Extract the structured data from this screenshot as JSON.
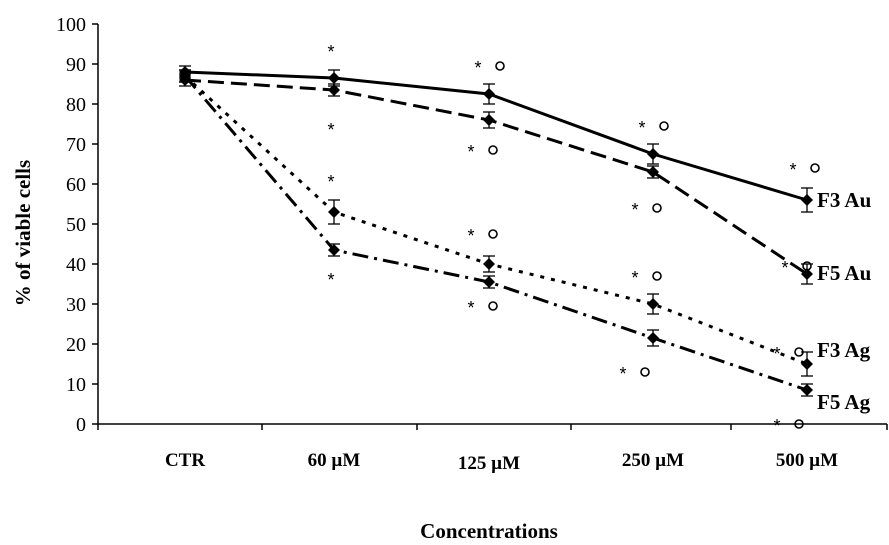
{
  "chart_data": {
    "type": "line",
    "title": "",
    "xlabel": "Concentrations",
    "ylabel": "% of viable cells",
    "categories": [
      "CTR",
      "60 µM",
      "125 µM",
      "250 µM",
      "500 µM"
    ],
    "ylim": [
      0,
      100
    ],
    "yticks": [
      0,
      10,
      20,
      30,
      40,
      50,
      60,
      70,
      80,
      90,
      100
    ],
    "grid": false,
    "series": [
      {
        "name": "F3 Au",
        "line_style": "solid",
        "values": [
          88,
          86.5,
          82.5,
          67.5,
          56
        ],
        "errors": [
          1.5,
          2,
          2.5,
          2.5,
          3
        ],
        "annotations": [
          "",
          "*",
          "* °",
          "* °",
          "* °"
        ]
      },
      {
        "name": "F5 Au",
        "line_style": "dashed",
        "values": [
          86,
          83.5,
          76,
          63,
          37.5
        ],
        "errors": [
          1.5,
          1.5,
          2,
          1.5,
          2.5
        ],
        "annotations": [
          "",
          "*",
          "* °",
          "* °",
          "* °"
        ]
      },
      {
        "name": "F3 Ag",
        "line_style": "dotted",
        "values": [
          87,
          53,
          40,
          30,
          15
        ],
        "errors": [
          1.5,
          3,
          2,
          2.5,
          3
        ],
        "annotations": [
          "",
          "*",
          "* °",
          "* °",
          "* °"
        ]
      },
      {
        "name": "F5 Ag",
        "line_style": "dash-dot",
        "values": [
          87,
          43.5,
          35.5,
          21.5,
          8.5
        ],
        "errors": [
          1.5,
          1.5,
          1.5,
          2,
          1.5
        ],
        "annotations": [
          "",
          "*",
          "* °",
          "* °",
          "* °"
        ]
      }
    ]
  }
}
